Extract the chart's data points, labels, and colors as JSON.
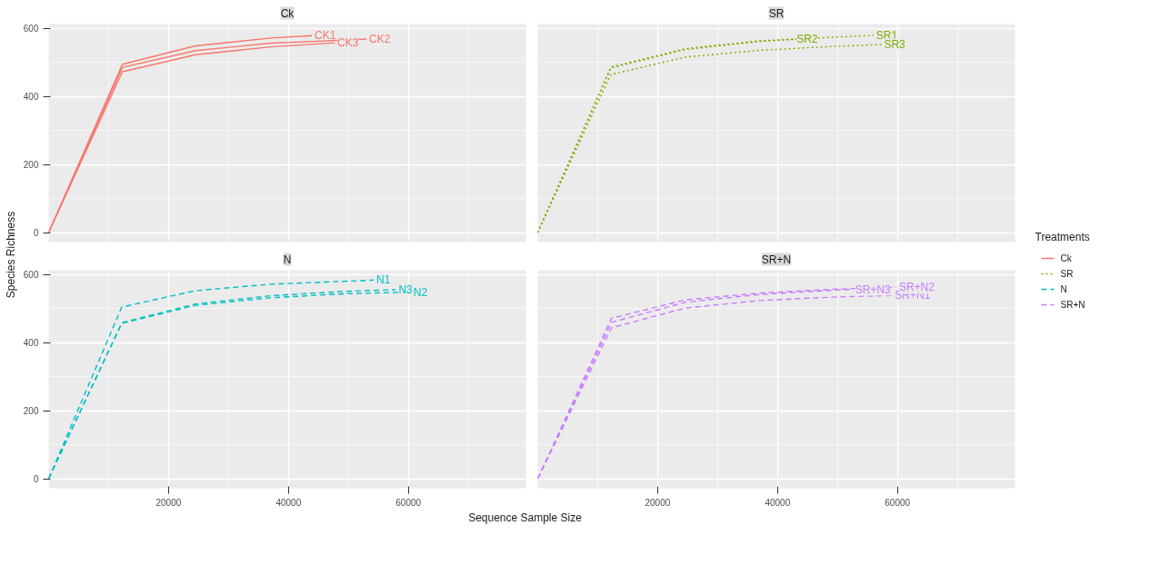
{
  "chart_data": [
    {
      "type": "line",
      "title": "Ck",
      "ylabel": "Species Richness",
      "legend_title": "Treatments",
      "legend": "right",
      "line_style": "solid",
      "grid": true,
      "tick_labels": "y",
      "xlim": [
        0,
        79600
      ],
      "ylim": [
        -28,
        612
      ],
      "xticks": [
        20000,
        40000,
        60000
      ],
      "yticks": [
        0,
        200,
        400,
        600
      ],
      "data_labels": false,
      "series": [
        {
          "name": "CK1",
          "color": "#f8766d",
          "x": [
            0,
            12300,
            24500,
            37000,
            43900
          ],
          "values": [
            0,
            494,
            548,
            571,
            578
          ]
        },
        {
          "name": "CK2",
          "color": "#f8766d",
          "x": [
            0,
            12300,
            24500,
            37000,
            43900,
            53000
          ],
          "values": [
            0,
            485,
            534,
            556,
            561,
            568
          ]
        },
        {
          "name": "CK3",
          "color": "#f8766d",
          "x": [
            0,
            12300,
            24500,
            37000,
            47700
          ],
          "values": [
            0,
            472,
            522,
            545,
            557
          ]
        }
      ]
    },
    {
      "type": "line",
      "title": "SR",
      "legend": "right",
      "line_style": "dotted",
      "grid": true,
      "tick_labels": false,
      "xlim": [
        0,
        79600
      ],
      "ylim": [
        -28,
        612
      ],
      "xticks": [
        20000,
        40000,
        60000
      ],
      "yticks": [
        0,
        200,
        400,
        600
      ],
      "series": [
        {
          "name": "SR1",
          "color": "#7cae00",
          "x": [
            0,
            12200,
            24600,
            37000,
            43000,
            56000
          ],
          "values": [
            0,
            486,
            540,
            563,
            568,
            579
          ]
        },
        {
          "name": "SR2",
          "color": "#7cae00",
          "x": [
            0,
            12200,
            24600,
            37000,
            42700
          ],
          "values": [
            0,
            483,
            537,
            561,
            567
          ]
        },
        {
          "name": "SR3",
          "color": "#7cae00",
          "x": [
            0,
            12200,
            24600,
            37000,
            49000,
            57300
          ],
          "values": [
            0,
            464,
            515,
            535,
            546,
            552
          ]
        }
      ]
    },
    {
      "type": "line",
      "title": "N",
      "xlabel": "Sequence Sample Size",
      "legend": "right",
      "line_style": "dashed",
      "grid": true,
      "xlim": [
        0,
        79600
      ],
      "ylim": [
        -28,
        612
      ],
      "xticks": [
        20000,
        40000,
        60000
      ],
      "yticks": [
        0,
        200,
        400,
        600
      ],
      "series": [
        {
          "name": "N1",
          "color": "#00bfc4",
          "x": [
            0,
            12200,
            24500,
            37000,
            54200
          ],
          "values": [
            0,
            504,
            552,
            571,
            583
          ]
        },
        {
          "name": "N2",
          "color": "#00bfc4",
          "x": [
            0,
            12200,
            24500,
            37000,
            49400,
            60400
          ],
          "values": [
            0,
            456,
            509,
            531,
            543,
            548
          ]
        },
        {
          "name": "N3",
          "color": "#00bfc4",
          "x": [
            0,
            12200,
            24500,
            37000,
            49400,
            57900
          ],
          "values": [
            0,
            458,
            513,
            537,
            550,
            555
          ]
        }
      ]
    },
    {
      "type": "line",
      "title": "SR+N",
      "legend": "right",
      "line_style": "dashed",
      "grid": true,
      "tick_labels": "x",
      "xlim": [
        0,
        79600
      ],
      "ylim": [
        -28,
        612
      ],
      "xticks": [
        20000,
        40000,
        60000
      ],
      "yticks": [
        0,
        200,
        400,
        600
      ],
      "series": [
        {
          "name": "SR+N1",
          "color": "#c77cff",
          "x": [
            0,
            12300,
            24600,
            37000,
            49000,
            59100
          ],
          "values": [
            0,
            443,
            501,
            523,
            533,
            538
          ]
        },
        {
          "name": "SR+N2",
          "color": "#c77cff",
          "x": [
            0,
            12300,
            24600,
            37000,
            49000,
            59800
          ],
          "values": [
            0,
            471,
            525,
            545,
            556,
            562
          ]
        },
        {
          "name": "SR+N3",
          "color": "#c77cff",
          "x": [
            0,
            12300,
            24600,
            37000,
            49000,
            52500
          ],
          "values": [
            0,
            459,
            518,
            541,
            553,
            556
          ]
        }
      ]
    }
  ]
}
